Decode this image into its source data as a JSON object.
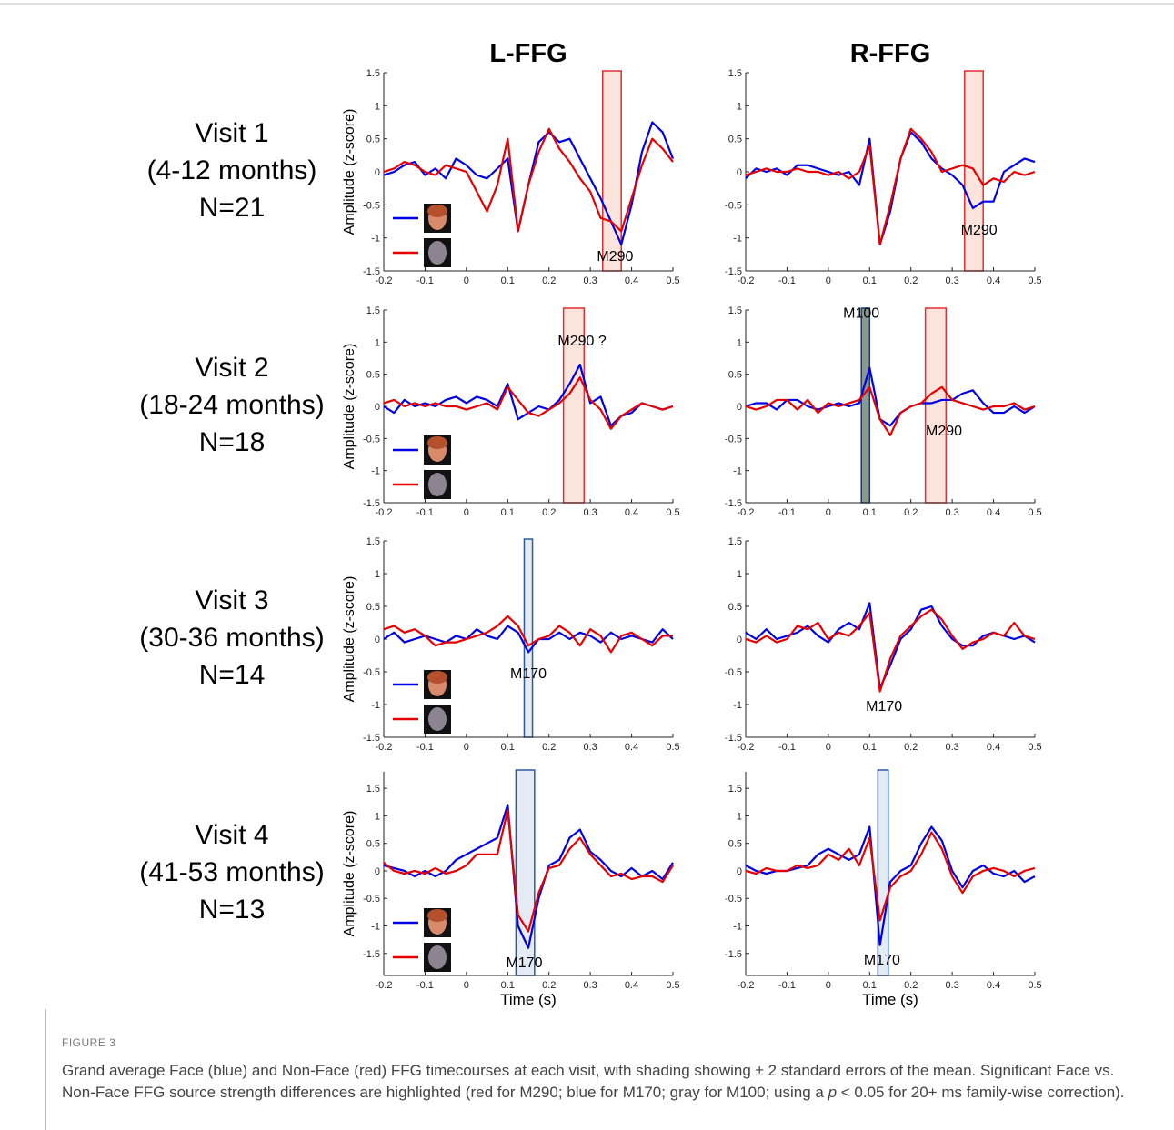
{
  "figure": {
    "columns": [
      "L-FFG",
      "R-FFG"
    ],
    "rows": [
      [
        "Visit 1",
        "(4-12 months)",
        "N=21"
      ],
      [
        "Visit 2",
        "(18-24 months)",
        "N=18"
      ],
      [
        "Visit 3",
        "(30-36 months)",
        "N=14"
      ],
      [
        "Visit 4",
        "(41-53 months)",
        "N=13"
      ]
    ],
    "label": "FIGURE 3",
    "caption": [
      "Grand average Face (blue) and Non-Face (red) FFG timecourses at each visit, with shading showing ± 2 standard errors of the mean. Significant Face vs. Non-Face FFG source strength differences are highlighted (red for M290; blue for M170; gray for M100; using a ",
      "p",
      " < 0.05 for 20+ ms family-wise correction)."
    ]
  },
  "chart_data": [
    {
      "type": "line",
      "ylabel": "Amplitude (z-score)",
      "legend": "lower left",
      "x": [
        -0.2,
        -0.175,
        -0.15,
        -0.125,
        -0.1,
        -0.075,
        -0.05,
        -0.025,
        0,
        0.025,
        0.05,
        0.075,
        0.1,
        0.125,
        0.15,
        0.175,
        0.2,
        0.225,
        0.25,
        0.275,
        0.3,
        0.325,
        0.35,
        0.375,
        0.4,
        0.425,
        0.45,
        0.475,
        0.5
      ],
      "series": [
        {
          "color": "#0000e6",
          "values": [
            -0.05,
            0,
            0.1,
            0.15,
            -0.05,
            0.05,
            -0.1,
            0.2,
            0.1,
            -0.05,
            -0.1,
            0.05,
            0.2,
            -0.9,
            -0.2,
            0.45,
            0.6,
            0.45,
            0.5,
            0.2,
            -0.1,
            -0.4,
            -0.75,
            -1.1,
            -0.5,
            0.3,
            0.75,
            0.6,
            0.2
          ]
        },
        {
          "color": "#e60000",
          "values": [
            0,
            0.05,
            0.15,
            0.1,
            0,
            -0.05,
            0.1,
            0.05,
            0,
            -0.3,
            -0.6,
            -0.2,
            0.5,
            -0.9,
            -0.2,
            0.3,
            0.65,
            0.35,
            0.15,
            -0.1,
            -0.3,
            -0.7,
            -0.75,
            -0.9,
            -0.4,
            0.1,
            0.5,
            0.35,
            0.15
          ]
        }
      ],
      "highlights": [
        {
          "x": [
            0.33,
            0.375
          ],
          "fill": "#fbe4dc",
          "stroke": "#e03030"
        }
      ],
      "annotations": [
        {
          "text": "M290",
          "x": 0.36,
          "y": -1.35
        }
      ],
      "xlim": [
        -0.2,
        0.5
      ],
      "ylim": [
        -1.5,
        1.5
      ],
      "xticks": [
        -0.2,
        -0.1,
        0,
        0.1,
        0.2,
        0.3,
        0.4,
        0.5
      ],
      "yticks": [
        -1.5,
        -1,
        -0.5,
        0,
        0.5,
        1,
        1.5
      ]
    },
    {
      "type": "line",
      "x": [
        -0.2,
        -0.175,
        -0.15,
        -0.125,
        -0.1,
        -0.075,
        -0.05,
        -0.025,
        0,
        0.025,
        0.05,
        0.075,
        0.1,
        0.125,
        0.15,
        0.175,
        0.2,
        0.225,
        0.25,
        0.275,
        0.3,
        0.325,
        0.35,
        0.375,
        0.4,
        0.425,
        0.45,
        0.475,
        0.5
      ],
      "series": [
        {
          "color": "#0000e6",
          "values": [
            -0.1,
            0.05,
            0,
            0.05,
            -0.05,
            0.1,
            0.1,
            0.05,
            0,
            -0.05,
            0,
            -0.2,
            0.5,
            -1.1,
            -0.6,
            0.2,
            0.6,
            0.45,
            0.2,
            0.05,
            -0.05,
            -0.2,
            -0.55,
            -0.45,
            -0.45,
            0,
            0.1,
            0.2,
            0.15
          ]
        },
        {
          "color": "#e60000",
          "values": [
            -0.05,
            0,
            0.05,
            0,
            0,
            0.05,
            0,
            0,
            -0.05,
            0,
            -0.1,
            0,
            0.4,
            -1.1,
            -0.5,
            0.2,
            0.65,
            0.5,
            0.3,
            0,
            0.05,
            0.1,
            0.05,
            -0.2,
            -0.1,
            -0.15,
            0,
            -0.05,
            0
          ]
        }
      ],
      "highlights": [
        {
          "x": [
            0.33,
            0.375
          ],
          "fill": "#fbe4dc",
          "stroke": "#e03030"
        }
      ],
      "annotations": [
        {
          "text": "M290",
          "x": 0.365,
          "y": -0.95
        }
      ],
      "xlim": [
        -0.2,
        0.5
      ],
      "ylim": [
        -1.5,
        1.5
      ],
      "xticks": [
        -0.2,
        -0.1,
        0,
        0.1,
        0.2,
        0.3,
        0.4,
        0.5
      ],
      "yticks": [
        -1.5,
        -1,
        -0.5,
        0,
        0.5,
        1,
        1.5
      ]
    },
    {
      "type": "line",
      "ylabel": "Amplitude (z-score)",
      "legend": "lower left",
      "x": [
        -0.2,
        -0.175,
        -0.15,
        -0.125,
        -0.1,
        -0.075,
        -0.05,
        -0.025,
        0,
        0.025,
        0.05,
        0.075,
        0.1,
        0.125,
        0.15,
        0.175,
        0.2,
        0.225,
        0.25,
        0.275,
        0.3,
        0.325,
        0.35,
        0.375,
        0.4,
        0.425,
        0.45,
        0.475,
        0.5
      ],
      "series": [
        {
          "color": "#0000e6",
          "values": [
            0,
            -0.1,
            0.1,
            0,
            0.05,
            0,
            0.1,
            0.15,
            0.05,
            0.15,
            0.1,
            0,
            0.35,
            -0.2,
            -0.1,
            0,
            -0.05,
            0.1,
            0.35,
            0.65,
            0.05,
            0.15,
            -0.3,
            -0.15,
            -0.1,
            0.05,
            0,
            -0.05,
            0
          ]
        },
        {
          "color": "#e60000",
          "values": [
            0.05,
            0.1,
            0,
            0.05,
            0,
            0.05,
            0,
            0,
            -0.05,
            0,
            0.05,
            -0.05,
            0.3,
            0.1,
            -0.1,
            -0.15,
            -0.05,
            0.05,
            0.2,
            0.45,
            0.1,
            -0.05,
            -0.35,
            -0.15,
            -0.05,
            0.05,
            0,
            -0.05,
            0
          ]
        }
      ],
      "highlights": [
        {
          "x": [
            0.235,
            0.285
          ],
          "fill": "#fbe4dc",
          "stroke": "#e03030"
        }
      ],
      "annotations": [
        {
          "text": "M290 ?",
          "x": 0.28,
          "y": 0.95
        }
      ],
      "xlim": [
        -0.2,
        0.5
      ],
      "ylim": [
        -1.5,
        1.5
      ],
      "xticks": [
        -0.2,
        -0.1,
        0,
        0.1,
        0.2,
        0.3,
        0.4,
        0.5
      ],
      "yticks": [
        -1.5,
        -1,
        -0.5,
        0,
        0.5,
        1,
        1.5
      ]
    },
    {
      "type": "line",
      "x": [
        -0.2,
        -0.175,
        -0.15,
        -0.125,
        -0.1,
        -0.075,
        -0.05,
        -0.025,
        0,
        0.025,
        0.05,
        0.075,
        0.1,
        0.125,
        0.15,
        0.175,
        0.2,
        0.225,
        0.25,
        0.275,
        0.3,
        0.325,
        0.35,
        0.375,
        0.4,
        0.425,
        0.45,
        0.475,
        0.5
      ],
      "series": [
        {
          "color": "#0000e6",
          "values": [
            0,
            0.05,
            0.05,
            -0.05,
            0.1,
            0.1,
            0,
            -0.05,
            0,
            0.05,
            0,
            0.05,
            0.6,
            -0.2,
            -0.3,
            -0.1,
            0,
            0.05,
            0.05,
            0.1,
            0.1,
            0.2,
            0.25,
            0.05,
            -0.1,
            -0.1,
            0,
            -0.1,
            0
          ]
        },
        {
          "color": "#e60000",
          "values": [
            0,
            -0.05,
            0,
            0.1,
            0.1,
            -0.05,
            0.1,
            -0.1,
            0.05,
            0,
            0.05,
            0.1,
            0.3,
            -0.2,
            -0.45,
            -0.1,
            0,
            0.05,
            0.2,
            0.3,
            0.1,
            0.05,
            0,
            -0.05,
            0,
            0,
            0.05,
            -0.05,
            0
          ]
        }
      ],
      "highlights": [
        {
          "x": [
            0.08,
            0.1
          ],
          "fill": "#8a9a90",
          "stroke": "#1a3a7a"
        },
        {
          "x": [
            0.235,
            0.285
          ],
          "fill": "#fbe4dc",
          "stroke": "#e03030"
        }
      ],
      "annotations": [
        {
          "text": "M100",
          "x": 0.08,
          "y": 1.38
        },
        {
          "text": "M290",
          "x": 0.28,
          "y": -0.45
        }
      ],
      "xlim": [
        -0.2,
        0.5
      ],
      "ylim": [
        -1.5,
        1.5
      ],
      "xticks": [
        -0.2,
        -0.1,
        0,
        0.1,
        0.2,
        0.3,
        0.4,
        0.5
      ],
      "yticks": [
        -1.5,
        -1,
        -0.5,
        0,
        0.5,
        1,
        1.5
      ]
    },
    {
      "type": "line",
      "ylabel": "Amplitude (z-score)",
      "legend": "lower left",
      "x": [
        -0.2,
        -0.175,
        -0.15,
        -0.125,
        -0.1,
        -0.075,
        -0.05,
        -0.025,
        0,
        0.025,
        0.05,
        0.075,
        0.1,
        0.125,
        0.15,
        0.175,
        0.2,
        0.225,
        0.25,
        0.275,
        0.3,
        0.325,
        0.35,
        0.375,
        0.4,
        0.425,
        0.45,
        0.475,
        0.5
      ],
      "series": [
        {
          "color": "#0000e6",
          "values": [
            0,
            0.1,
            -0.05,
            0,
            0.05,
            0,
            -0.05,
            0.05,
            0,
            0.15,
            0.05,
            0,
            0.2,
            0.1,
            -0.2,
            0,
            0,
            0.1,
            0,
            0.1,
            0.05,
            -0.05,
            0.1,
            0,
            0.05,
            0,
            -0.05,
            0.15,
            0
          ]
        },
        {
          "color": "#e60000",
          "values": [
            0.15,
            0.2,
            0.1,
            0.15,
            0.05,
            -0.1,
            -0.05,
            -0.05,
            0,
            0.05,
            0.1,
            0.2,
            0.35,
            0.2,
            -0.1,
            0,
            0.05,
            0.2,
            0.1,
            -0.1,
            0.15,
            0.05,
            -0.2,
            0.05,
            0.1,
            0,
            -0.1,
            0.05,
            0.05
          ]
        }
      ],
      "highlights": [
        {
          "x": [
            0.14,
            0.16
          ],
          "fill": "#e4ebf5",
          "stroke": "#2c5aa0"
        }
      ],
      "annotations": [
        {
          "text": "M170",
          "x": 0.15,
          "y": -0.6
        }
      ],
      "xlim": [
        -0.2,
        0.5
      ],
      "ylim": [
        -1.5,
        1.5
      ],
      "xticks": [
        -0.2,
        -0.1,
        0,
        0.1,
        0.2,
        0.3,
        0.4,
        0.5
      ],
      "yticks": [
        -1.5,
        -1,
        -0.5,
        0,
        0.5,
        1,
        1.5
      ]
    },
    {
      "type": "line",
      "x": [
        -0.2,
        -0.175,
        -0.15,
        -0.125,
        -0.1,
        -0.075,
        -0.05,
        -0.025,
        0,
        0.025,
        0.05,
        0.075,
        0.1,
        0.125,
        0.15,
        0.175,
        0.2,
        0.225,
        0.25,
        0.275,
        0.3,
        0.325,
        0.35,
        0.375,
        0.4,
        0.425,
        0.45,
        0.475,
        0.5
      ],
      "series": [
        {
          "color": "#0000e6",
          "values": [
            0.1,
            0,
            0.15,
            0,
            0.05,
            0.1,
            0.2,
            0.05,
            -0.05,
            0.15,
            0.25,
            0.15,
            0.55,
            -0.75,
            -0.4,
            0,
            0.15,
            0.45,
            0.5,
            0.2,
            0,
            -0.1,
            -0.1,
            0.05,
            0.1,
            0.05,
            0,
            0.05,
            -0.05
          ]
        },
        {
          "color": "#e60000",
          "values": [
            0,
            -0.05,
            0.05,
            -0.05,
            0,
            0.2,
            0.15,
            0.25,
            0,
            0.1,
            0.05,
            0.2,
            0.4,
            -0.8,
            -0.3,
            0.05,
            0.2,
            0.35,
            0.45,
            0.3,
            0.05,
            -0.15,
            -0.05,
            0,
            0.1,
            0.05,
            0.25,
            0.05,
            0
          ]
        }
      ],
      "highlights": [],
      "annotations": [
        {
          "text": "M170",
          "x": 0.135,
          "y": -1.1
        }
      ],
      "xlim": [
        -0.2,
        0.5
      ],
      "ylim": [
        -1.5,
        1.5
      ],
      "xticks": [
        -0.2,
        -0.1,
        0,
        0.1,
        0.2,
        0.3,
        0.4,
        0.5
      ],
      "yticks": [
        -1.5,
        -1,
        -0.5,
        0,
        0.5,
        1,
        1.5
      ]
    },
    {
      "type": "line",
      "ylabel": "Amplitude (z-score)",
      "xlabel": "Time (s)",
      "legend": "lower left",
      "x": [
        -0.2,
        -0.175,
        -0.15,
        -0.125,
        -0.1,
        -0.075,
        -0.05,
        -0.025,
        0,
        0.025,
        0.05,
        0.075,
        0.1,
        0.125,
        0.15,
        0.175,
        0.2,
        0.225,
        0.25,
        0.275,
        0.3,
        0.325,
        0.35,
        0.375,
        0.4,
        0.425,
        0.45,
        0.475,
        0.5
      ],
      "series": [
        {
          "color": "#0000e6",
          "values": [
            0.1,
            0.05,
            0,
            -0.1,
            0,
            -0.1,
            0,
            0.2,
            0.3,
            0.4,
            0.5,
            0.6,
            1.2,
            -1,
            -1.4,
            -0.5,
            0.1,
            0.2,
            0.6,
            0.75,
            0.35,
            0.2,
            0,
            -0.1,
            0.05,
            -0.1,
            0,
            -0.15,
            0.15
          ]
        },
        {
          "color": "#e60000",
          "values": [
            0.15,
            0,
            -0.05,
            0,
            -0.05,
            0.05,
            -0.05,
            0,
            0.1,
            0.3,
            0.3,
            0.3,
            1.1,
            -0.8,
            -1.1,
            -0.4,
            0.05,
            0.1,
            0.4,
            0.6,
            0.3,
            0.1,
            -0.1,
            -0.05,
            -0.15,
            -0.1,
            -0.1,
            -0.2,
            0.1
          ]
        }
      ],
      "highlights": [
        {
          "x": [
            0.12,
            0.165
          ],
          "fill": "#e4ebf5",
          "stroke": "#2c5aa0"
        }
      ],
      "annotations": [
        {
          "text": "M170",
          "x": 0.14,
          "y": -1.75
        }
      ],
      "xlim": [
        -0.2,
        0.5
      ],
      "ylim": [
        -1.9,
        1.8
      ],
      "xticks": [
        -0.2,
        -0.1,
        0,
        0.1,
        0.2,
        0.3,
        0.4,
        0.5
      ],
      "yticks": [
        -1.5,
        -1,
        -0.5,
        0,
        0.5,
        1,
        1.5
      ]
    },
    {
      "type": "line",
      "xlabel": "Time (s)",
      "x": [
        -0.2,
        -0.175,
        -0.15,
        -0.125,
        -0.1,
        -0.075,
        -0.05,
        -0.025,
        0,
        0.025,
        0.05,
        0.075,
        0.1,
        0.125,
        0.15,
        0.175,
        0.2,
        0.225,
        0.25,
        0.275,
        0.3,
        0.325,
        0.35,
        0.375,
        0.4,
        0.425,
        0.45,
        0.475,
        0.5
      ],
      "series": [
        {
          "color": "#0000e6",
          "values": [
            0.1,
            0,
            -0.05,
            0,
            0,
            0.05,
            0.1,
            0.3,
            0.4,
            0.3,
            0.2,
            0.3,
            0.8,
            -1.35,
            -0.2,
            0,
            0.1,
            0.5,
            0.8,
            0.55,
            0,
            -0.3,
            0,
            0.1,
            -0.05,
            -0.1,
            0,
            -0.2,
            -0.1
          ]
        },
        {
          "color": "#e60000",
          "values": [
            0,
            -0.05,
            0.05,
            0,
            0,
            0.1,
            0.05,
            0.1,
            0.3,
            0.2,
            0.4,
            0.1,
            0.6,
            -0.9,
            -0.3,
            -0.1,
            0,
            0.3,
            0.7,
            0.4,
            -0.1,
            -0.4,
            -0.1,
            0,
            0.05,
            0,
            -0.1,
            0,
            0.05
          ]
        }
      ],
      "highlights": [
        {
          "x": [
            0.12,
            0.145
          ],
          "fill": "#e4ebf5",
          "stroke": "#2c5aa0"
        }
      ],
      "annotations": [
        {
          "text": "M170",
          "x": 0.13,
          "y": -1.7
        }
      ],
      "xlim": [
        -0.2,
        0.5
      ],
      "ylim": [
        -1.9,
        1.8
      ],
      "xticks": [
        -0.2,
        -0.1,
        0,
        0.1,
        0.2,
        0.3,
        0.4,
        0.5
      ],
      "yticks": [
        -1.5,
        -1,
        -0.5,
        0,
        0.5,
        1,
        1.5
      ]
    }
  ]
}
